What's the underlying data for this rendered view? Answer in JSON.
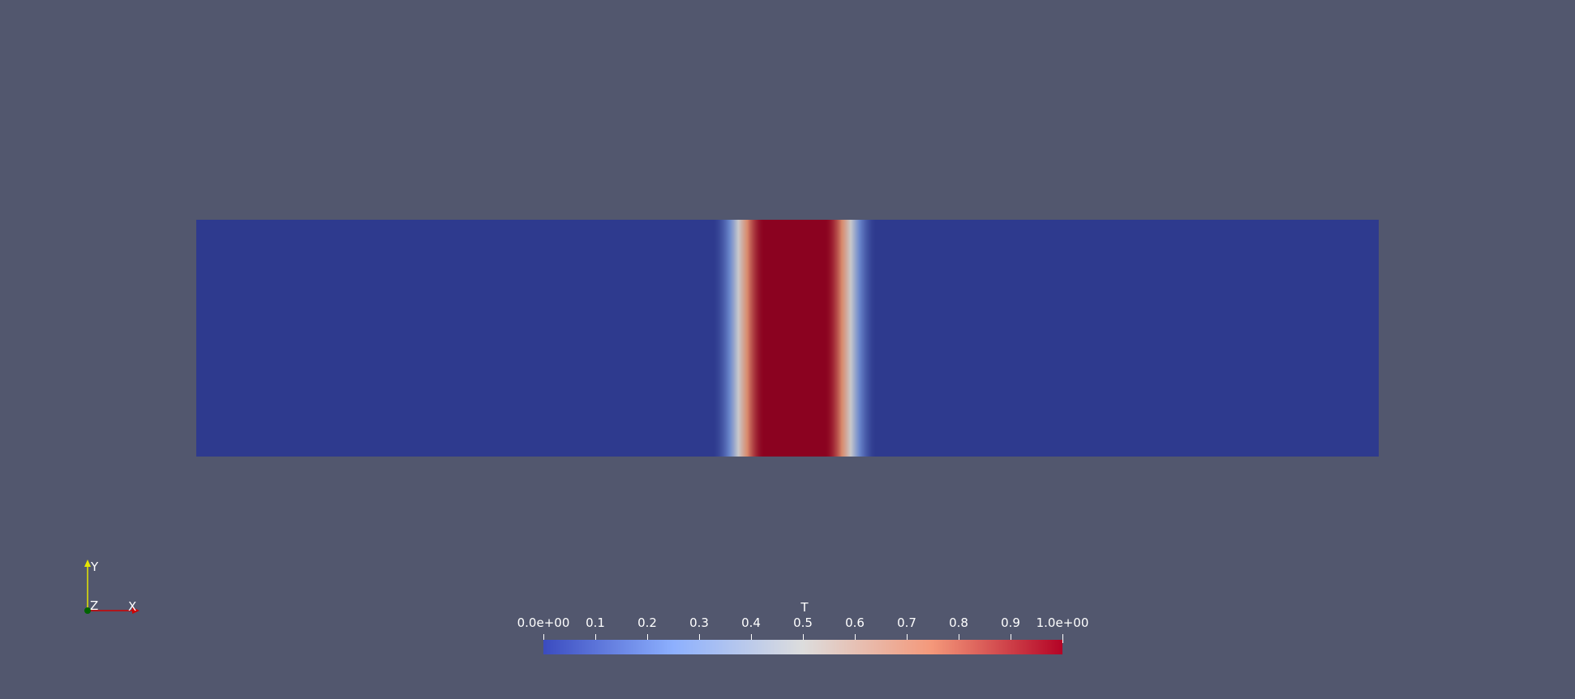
{
  "scene": {
    "background": "#52576e",
    "field_profile": {
      "description_values": "T across domain, 0 at edges, 1 at center band",
      "samples": [
        0,
        0,
        0,
        0,
        0,
        0,
        0,
        0,
        0,
        0,
        0,
        0,
        0,
        0,
        0,
        0,
        0,
        0,
        0,
        0,
        0,
        0,
        0,
        0,
        0,
        0,
        0,
        0,
        0,
        0,
        0,
        0,
        0,
        0,
        0,
        0,
        0,
        0,
        0,
        0,
        0,
        0,
        0,
        0,
        0,
        0.05,
        0.25,
        0.55,
        0.85,
        1,
        1,
        1,
        1,
        1,
        1,
        0.85,
        0.55,
        0.25,
        0.05,
        0,
        0,
        0,
        0,
        0,
        0,
        0,
        0,
        0,
        0,
        0,
        0,
        0,
        0,
        0,
        0,
        0,
        0,
        0,
        0,
        0,
        0,
        0,
        0,
        0,
        0,
        0,
        0,
        0,
        0,
        0,
        0,
        0,
        0,
        0,
        0,
        0,
        0,
        0,
        0,
        0,
        0,
        0,
        0,
        0,
        0,
        0,
        0,
        0,
        0,
        0,
        0,
        0,
        0,
        0,
        0,
        0,
        0,
        0,
        0,
        0,
        0,
        0,
        0,
        0,
        0
      ]
    }
  },
  "colormap": {
    "stops": [
      "#3b4cc0",
      "#8db0fe",
      "#dddddd",
      "#f4987a",
      "#b40426"
    ],
    "field_stops": [
      "#2e3a8e",
      "#6a87cc",
      "#c9c9cb",
      "#d98a6c",
      "#8b0220"
    ]
  },
  "scalar_bar": {
    "title": "T",
    "labels": [
      "0.0e+00",
      "0.1",
      "0.2",
      "0.3",
      "0.4",
      "0.5",
      "0.6",
      "0.7",
      "0.8",
      "0.9",
      "1.0e+00"
    ]
  },
  "axes": {
    "x_label": "X",
    "y_label": "Y",
    "z_label": "Z",
    "x_color": "#d00000",
    "y_color": "#e6e600",
    "z_color": "#006400"
  }
}
